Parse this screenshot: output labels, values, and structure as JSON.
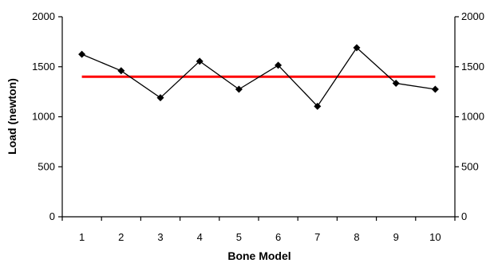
{
  "chart_data": {
    "type": "line",
    "x": [
      1,
      2,
      3,
      4,
      5,
      6,
      7,
      8,
      9,
      10
    ],
    "categories": [
      "1",
      "2",
      "3",
      "4",
      "5",
      "6",
      "7",
      "8",
      "9",
      "10"
    ],
    "series": [
      {
        "values": [
          1625,
          1460,
          1190,
          1555,
          1275,
          1515,
          1105,
          1690,
          1335,
          1275
        ],
        "color": "#000000",
        "marker": "diamond"
      }
    ],
    "reference_line": {
      "value": 1400,
      "color": "#ff0000"
    },
    "xlabel": "Bone Model",
    "ylabel": "Load (newton)",
    "ylim": [
      0,
      2000
    ],
    "yticks": [
      "0",
      "500",
      "1000",
      "1500",
      "2000"
    ],
    "secondary_yticks": [
      "0",
      "500",
      "1000",
      "1500",
      "2000"
    ],
    "grid": false
  }
}
